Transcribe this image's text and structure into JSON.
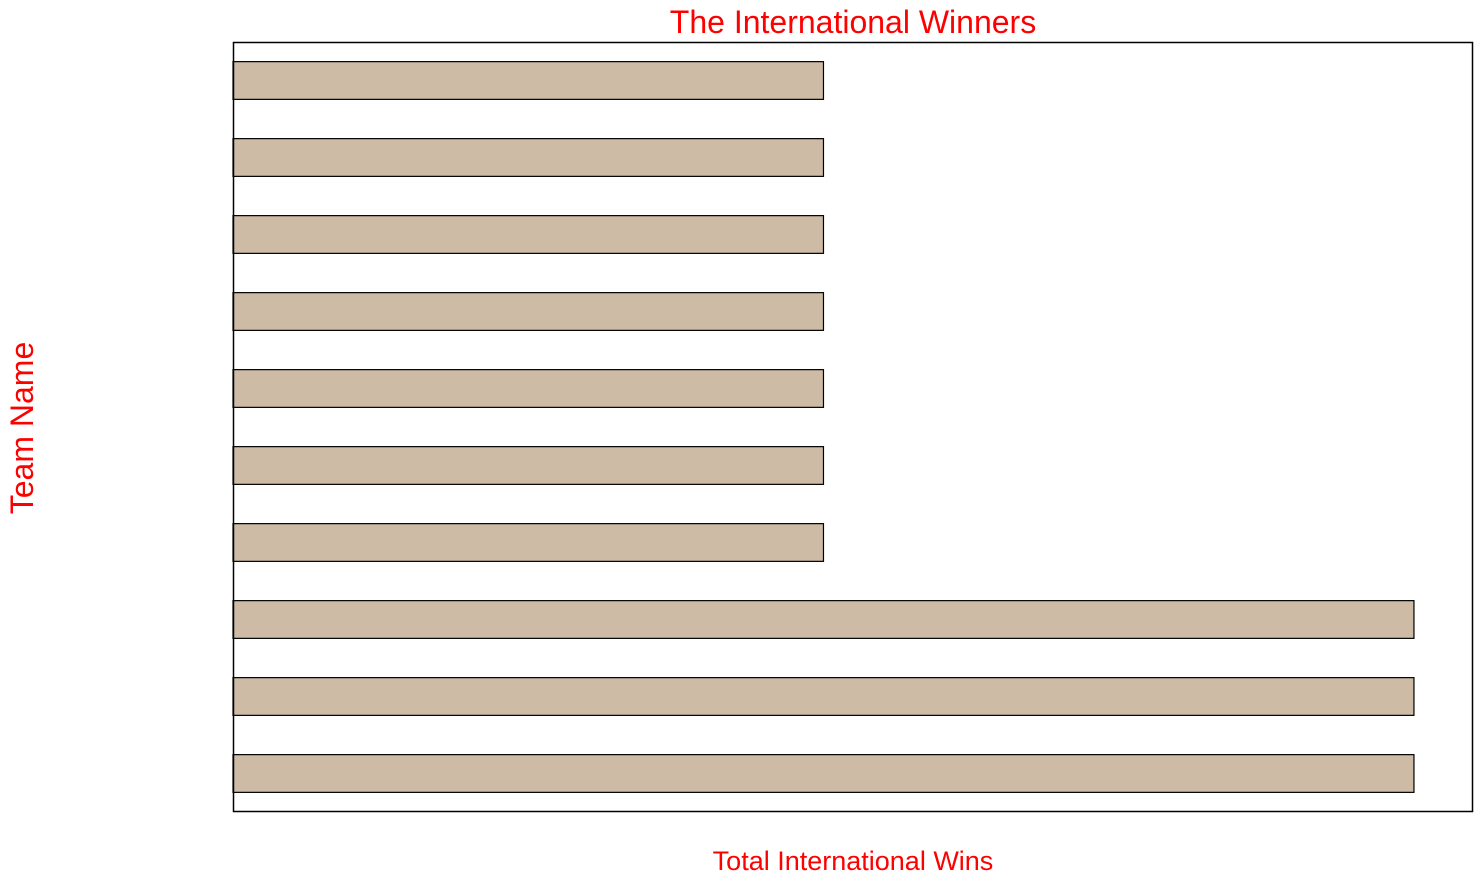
{
  "colors": {
    "text": "#ff0000",
    "bar_fill": "#cdbba6",
    "bar_stroke": "#000000",
    "frame": "#000000",
    "background": "#ffffff"
  },
  "chart_data": {
    "type": "bar",
    "orientation": "horizontal",
    "title": "The International Winners",
    "xlabel": "Total International Wins",
    "ylabel": "Team Name",
    "categories": [
      "",
      "",
      "",
      "",
      "",
      "",
      "",
      "",
      "",
      ""
    ],
    "values": [
      1,
      1,
      1,
      1,
      1,
      1,
      1,
      2,
      2,
      2
    ],
    "xlim": [
      0,
      2.1
    ],
    "x_ticks_shown": false,
    "y_ticks_shown": false,
    "grid": false,
    "legend": "none"
  }
}
